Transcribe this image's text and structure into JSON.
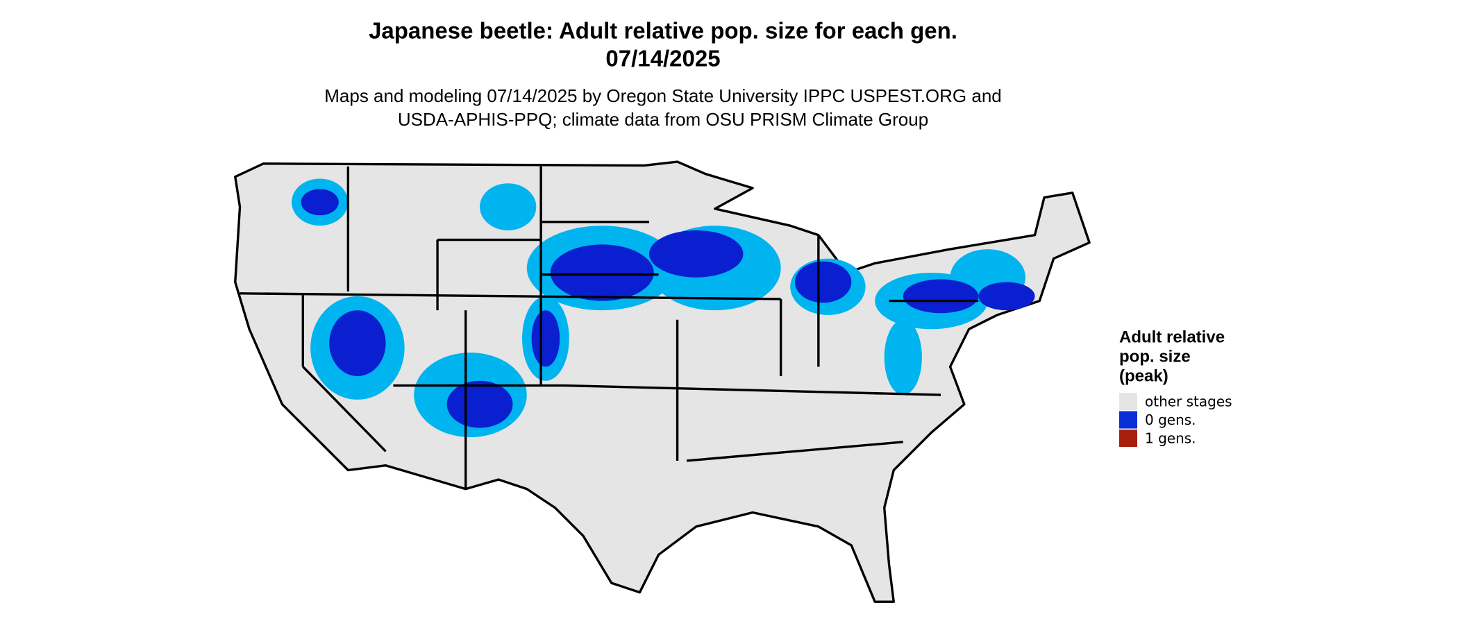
{
  "title": [
    "Japanese beetle: Adult relative pop. size for each gen.",
    "07/14/2025"
  ],
  "subtitle": [
    "Maps and modeling 07/14/2025 by Oregon State University IPPC USPEST.ORG and",
    "USDA-APHIS-PPQ; climate data from OSU PRISM Climate Group"
  ],
  "legend": {
    "title": [
      "Adult relative",
      "pop. size",
      "(peak)"
    ],
    "items": [
      {
        "label": "other stages",
        "color": "#e5e5e5"
      },
      {
        "label": "0 gens.",
        "color": "#0a2fd6"
      },
      {
        "label": "1 gens.",
        "color": "#a8200d"
      }
    ]
  }
}
